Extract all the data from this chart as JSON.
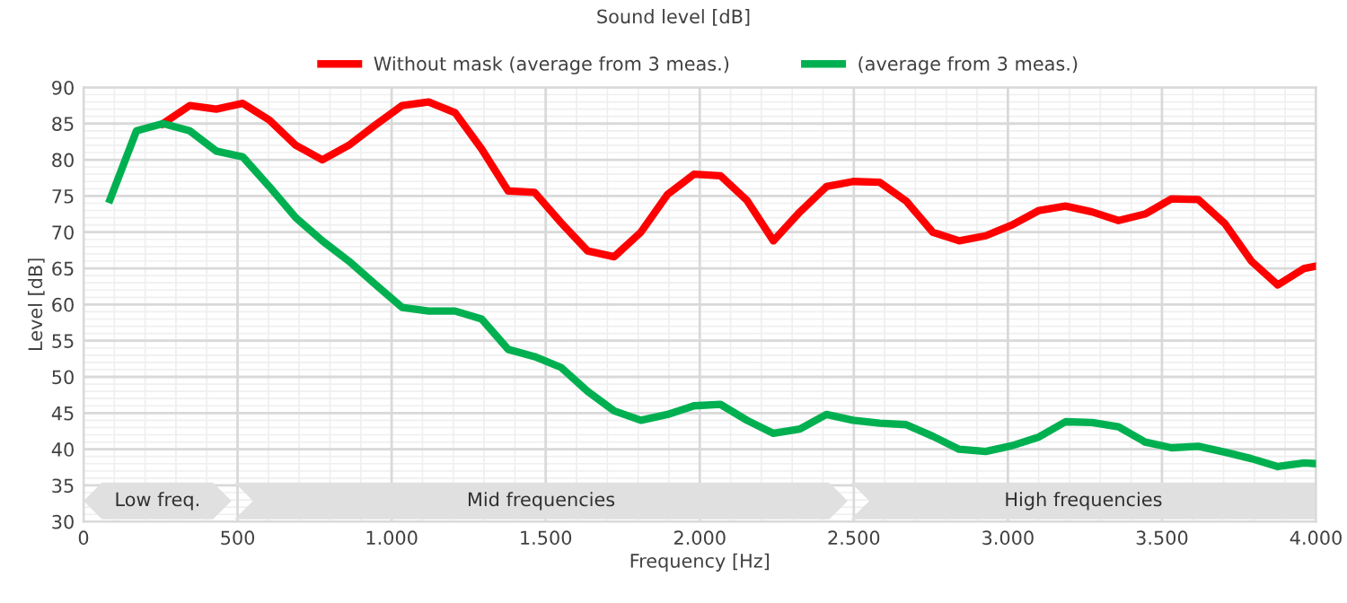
{
  "chart_data": {
    "type": "line",
    "title": "Sound level [dB]",
    "xlabel": "Frequency [Hz]",
    "ylabel": "Level [dB]",
    "x": [
      86,
      172,
      258,
      345,
      431,
      517,
      603,
      689,
      775,
      861,
      947,
      1034,
      1120,
      1206,
      1292,
      1378,
      1464,
      1550,
      1636,
      1722,
      1809,
      1895,
      1981,
      2067,
      2153,
      2239,
      2325,
      2411,
      2498,
      2584,
      2670,
      2756,
      2842,
      2928,
      3014,
      3101,
      3187,
      3273,
      3359,
      3445,
      3531,
      3618,
      3704,
      3790,
      3876,
      3962,
      4000
    ],
    "series": [
      {
        "name": "Without mask (average from 3 meas.)",
        "color": "#ff0000",
        "values": [
          null,
          null,
          85,
          87.5,
          87,
          87.8,
          85.5,
          82,
          80,
          82,
          84.8,
          87.5,
          88,
          86.5,
          81.5,
          75.7,
          75.5,
          71.3,
          67.4,
          66.6,
          70,
          75.2,
          78,
          77.8,
          74.4,
          68.8,
          72.8,
          76.3,
          77,
          76.9,
          74.3,
          70,
          68.8,
          69.5,
          71,
          73,
          73.6,
          72.8,
          71.6,
          72.5,
          74.6,
          74.5,
          71.2,
          66,
          62.7,
          65,
          65.3
        ]
      },
      {
        "name": "(average from 3 meas.)",
        "color": "#00b050",
        "values": [
          74.5,
          84,
          85,
          84,
          81.2,
          80.4,
          76.3,
          72,
          68.8,
          66,
          62.8,
          59.6,
          59.1,
          59.1,
          58,
          53.8,
          52.8,
          51.3,
          48,
          45.3,
          44,
          44.8,
          46,
          46.2,
          44,
          42.2,
          42.8,
          44.8,
          44,
          43.6,
          43.4,
          41.8,
          40,
          39.7,
          40.5,
          41.7,
          43.8,
          43.7,
          43.1,
          41,
          40.2,
          40.4,
          39.6,
          38.7,
          37.6,
          38.1,
          38
        ]
      }
    ],
    "xlim": [
      0,
      4000
    ],
    "ylim": [
      30,
      90
    ],
    "xticks": [
      0,
      500,
      {
        "value": 1000,
        "label": "1.000"
      },
      {
        "value": 1500,
        "label": "1.500"
      },
      {
        "value": 2000,
        "label": "2.000"
      },
      {
        "value": 2500,
        "label": "2.500"
      },
      {
        "value": 3000,
        "label": "3.000"
      },
      {
        "value": 3500,
        "label": "3.500"
      },
      {
        "value": 4000,
        "label": "4.000"
      }
    ],
    "yticks": [
      30,
      35,
      40,
      45,
      50,
      55,
      60,
      65,
      70,
      75,
      80,
      85,
      90
    ],
    "bands": [
      {
        "axis": "x",
        "from": 0,
        "to": 480,
        "label": "Low freq.",
        "color": "#e0e0e0"
      },
      {
        "axis": "x",
        "from": 490,
        "to": 2480,
        "label": "Mid frequencies",
        "color": "#e0e0e0"
      },
      {
        "axis": "x",
        "from": 2490,
        "to": 4000,
        "label": "High frequencies",
        "color": "#e0e0e0"
      }
    ],
    "grid": true,
    "legend": "top",
    "marker": "none",
    "line_style": "solid"
  }
}
